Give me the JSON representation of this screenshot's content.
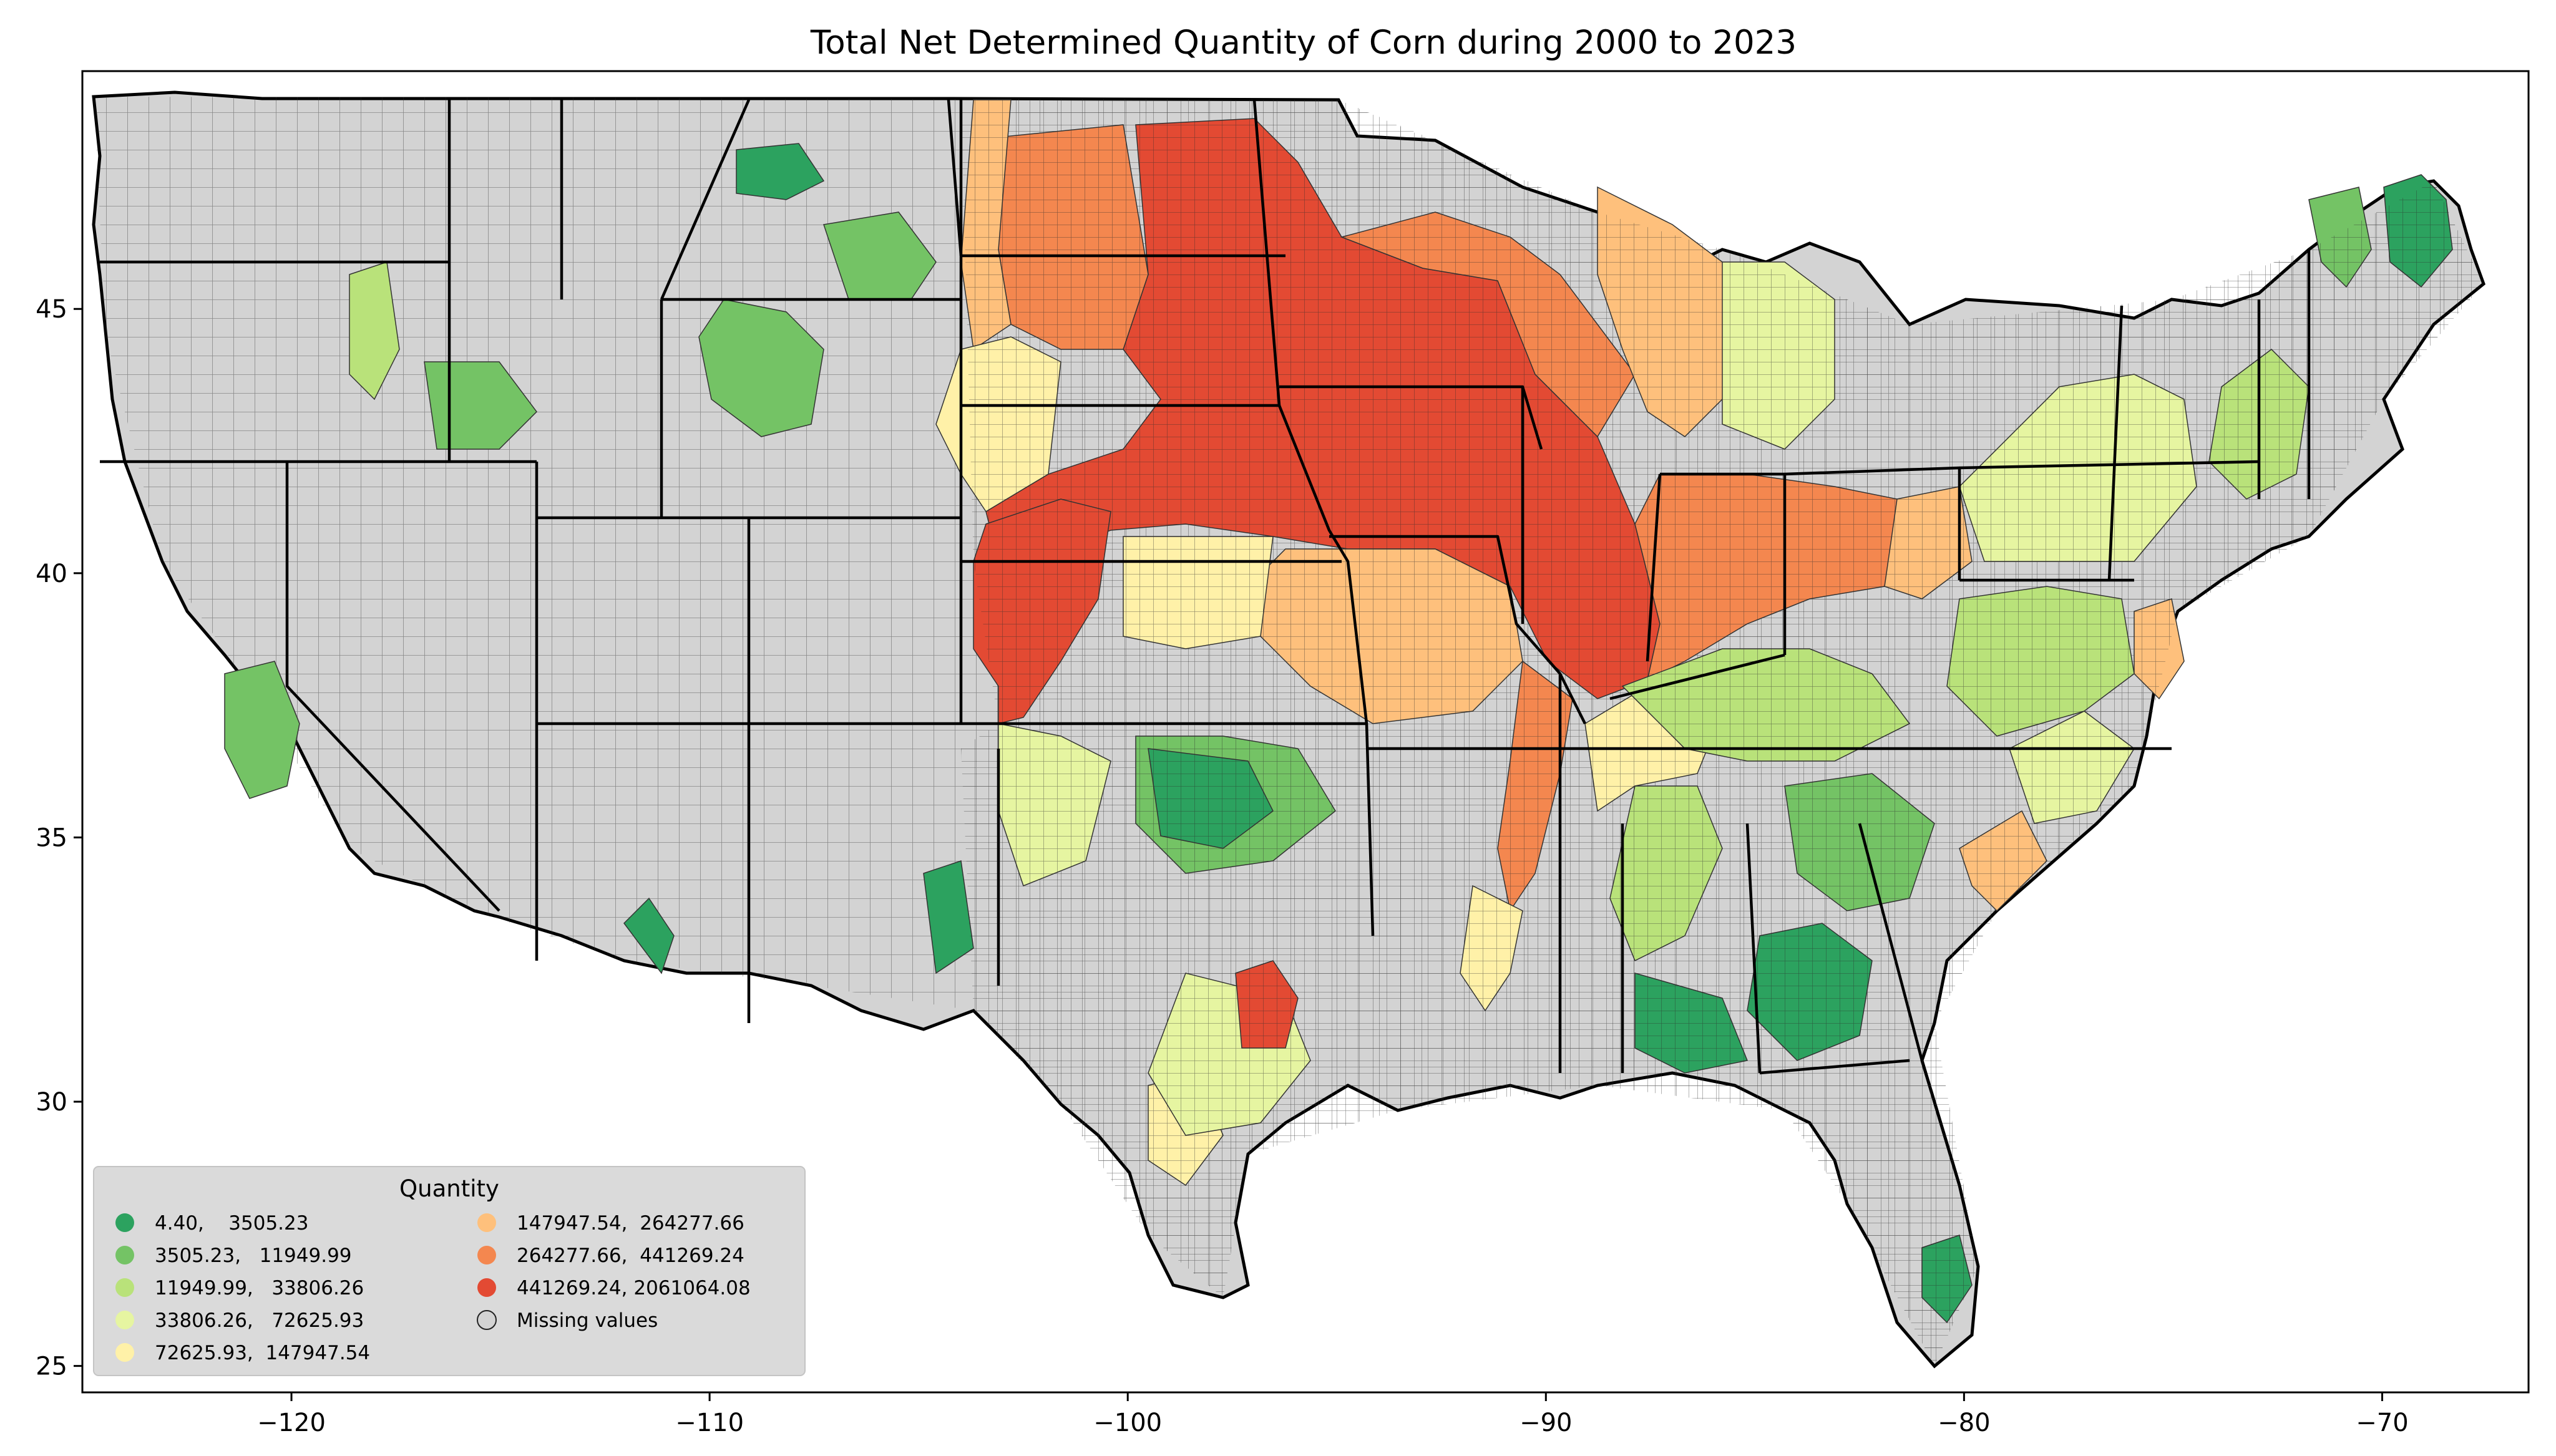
{
  "title": "Total Net Determined Quantity of Corn during 2000 to 2023",
  "x_axis": {
    "range": [
      -125,
      -66.5
    ],
    "ticks": [
      {
        "value": -120,
        "label": "−120"
      },
      {
        "value": -110,
        "label": "−110"
      },
      {
        "value": -100,
        "label": "−100"
      },
      {
        "value": -90,
        "label": "−90"
      },
      {
        "value": -80,
        "label": "−80"
      },
      {
        "value": -70,
        "label": "−70"
      }
    ]
  },
  "y_axis": {
    "range": [
      24.5,
      49.5
    ],
    "ticks": [
      {
        "value": 25,
        "label": "25"
      },
      {
        "value": 30,
        "label": "30"
      },
      {
        "value": 35,
        "label": "35"
      },
      {
        "value": 40,
        "label": "40"
      },
      {
        "value": 45,
        "label": "45"
      }
    ]
  },
  "legend": {
    "title": "Quantity",
    "placement": "lower-left",
    "entries": [
      {
        "label": "4.40,    3505.23",
        "color": "#2ca25f"
      },
      {
        "label": "3505.23,   11949.99",
        "color": "#74c365"
      },
      {
        "label": "11949.99,   33806.26",
        "color": "#b9e27a"
      },
      {
        "label": "33806.26,   72625.93",
        "color": "#e6f5a1"
      },
      {
        "label": "72625.93,  147947.54",
        "color": "#fff1a8"
      },
      {
        "label": "147947.54,  264277.66",
        "color": "#fec07c"
      },
      {
        "label": "264277.66,  441269.24",
        "color": "#f4874f"
      },
      {
        "label": "441269.24, 2061064.08",
        "color": "#e34a33"
      },
      {
        "label": "Missing values",
        "color": "#d3d3d3"
      }
    ]
  },
  "colors": {
    "missing": "#d3d3d3",
    "state_border": "#000000",
    "county_border": "#333333"
  }
}
